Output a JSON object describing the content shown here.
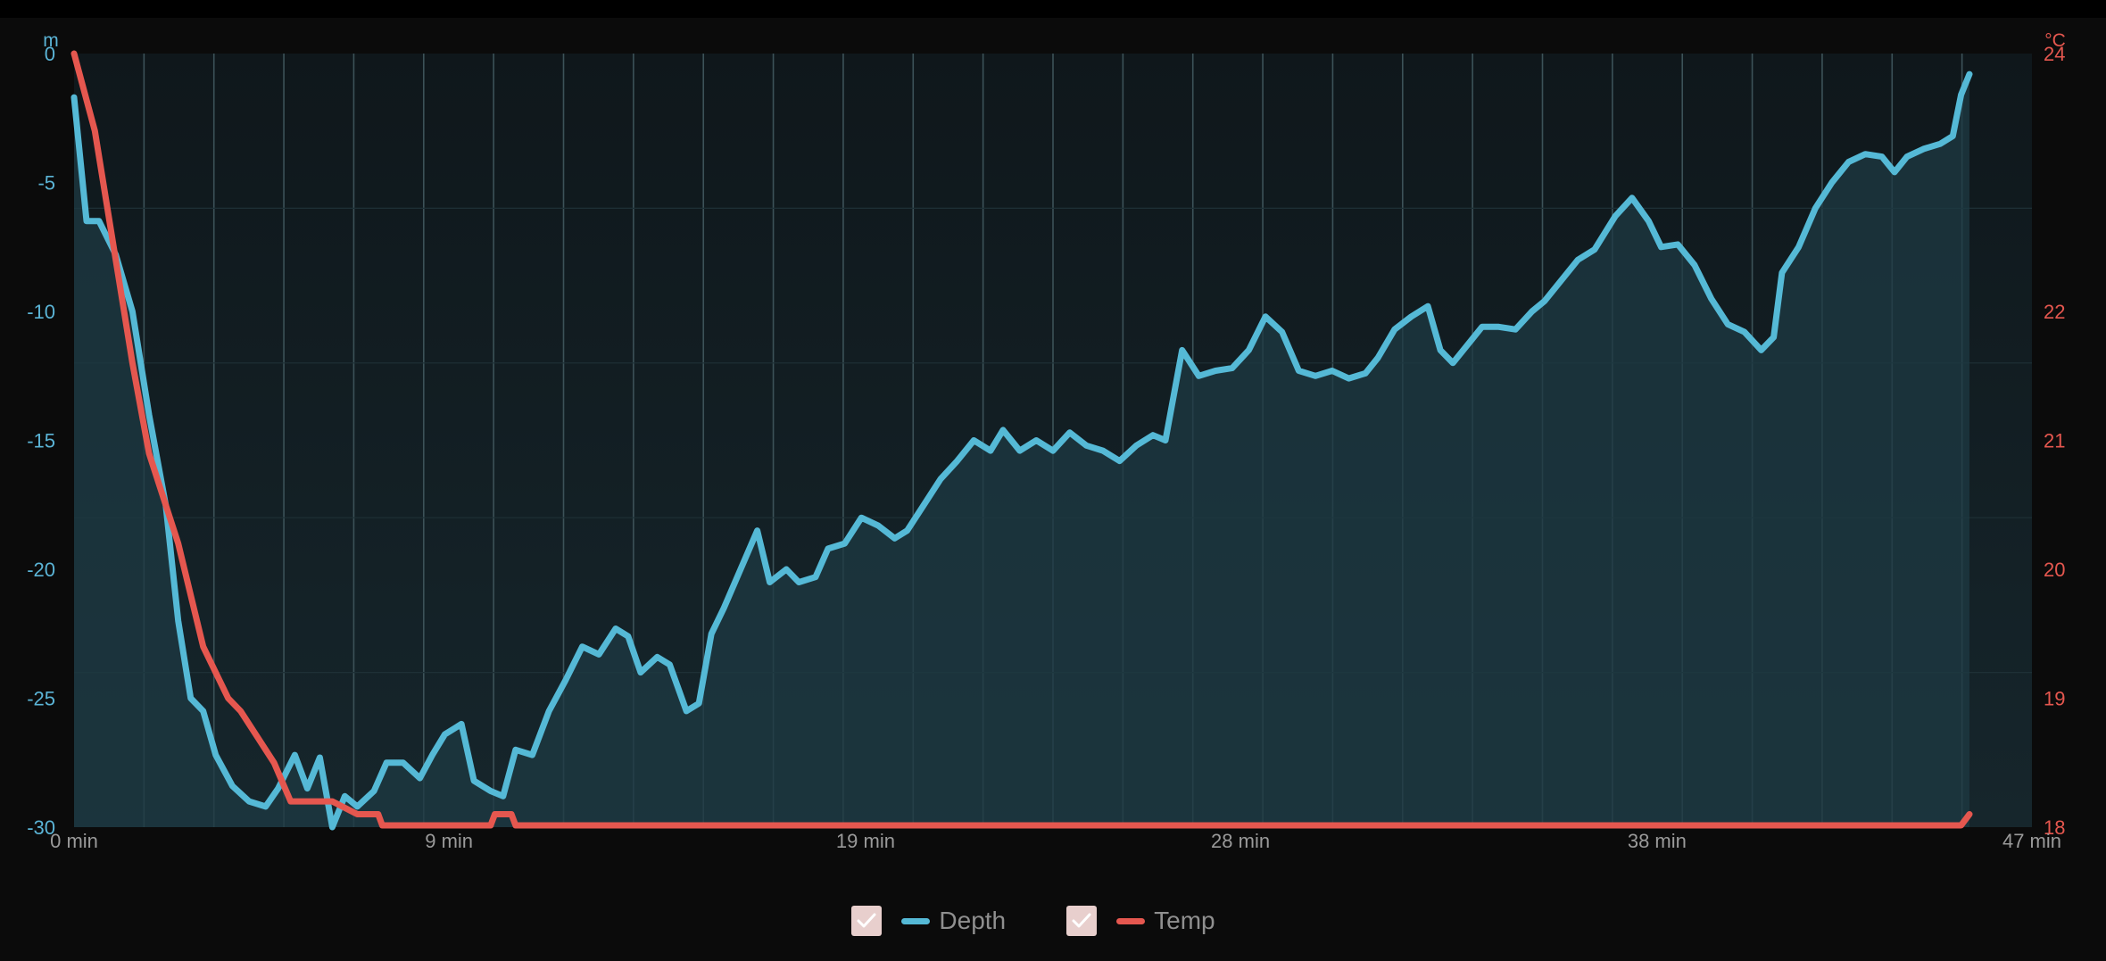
{
  "chart_data": {
    "type": "line",
    "x_unit_suffix": " min",
    "x_ticks": [
      0,
      9,
      19,
      28,
      38,
      47
    ],
    "xlim": [
      0,
      47
    ],
    "y_left": {
      "unit": "m",
      "ticks": [
        0,
        -5,
        -10,
        -15,
        -20,
        -25,
        -30
      ],
      "ylim": [
        -30,
        0
      ]
    },
    "y_right": {
      "unit": "°C",
      "ticks": [
        24,
        22,
        21,
        20,
        19,
        18
      ],
      "ylim": [
        18,
        24
      ]
    },
    "grid": true,
    "legend_position": "bottom-center",
    "series": [
      {
        "name": "Depth",
        "axis": "left",
        "color": "#55b9d6",
        "fill": true,
        "points": [
          [
            0,
            -1.7
          ],
          [
            0.3,
            -6.5
          ],
          [
            0.6,
            -6.5
          ],
          [
            1.0,
            -7.8
          ],
          [
            1.4,
            -10
          ],
          [
            1.8,
            -14
          ],
          [
            2.2,
            -17.5
          ],
          [
            2.5,
            -22
          ],
          [
            2.8,
            -25
          ],
          [
            3.1,
            -25.5
          ],
          [
            3.4,
            -27.2
          ],
          [
            3.8,
            -28.4
          ],
          [
            4.2,
            -29.0
          ],
          [
            4.6,
            -29.2
          ],
          [
            4.9,
            -28.5
          ],
          [
            5.3,
            -27.2
          ],
          [
            5.6,
            -28.5
          ],
          [
            5.9,
            -27.3
          ],
          [
            6.2,
            -30.0
          ],
          [
            6.5,
            -28.8
          ],
          [
            6.8,
            -29.2
          ],
          [
            7.2,
            -28.6
          ],
          [
            7.5,
            -27.5
          ],
          [
            7.9,
            -27.5
          ],
          [
            8.3,
            -28.1
          ],
          [
            8.6,
            -27.2
          ],
          [
            8.9,
            -26.4
          ],
          [
            9.3,
            -26.0
          ],
          [
            9.6,
            -28.2
          ],
          [
            10.0,
            -28.6
          ],
          [
            10.3,
            -28.8
          ],
          [
            10.6,
            -27.0
          ],
          [
            11.0,
            -27.2
          ],
          [
            11.4,
            -25.5
          ],
          [
            11.8,
            -24.3
          ],
          [
            12.2,
            -23.0
          ],
          [
            12.6,
            -23.3
          ],
          [
            13.0,
            -22.3
          ],
          [
            13.3,
            -22.6
          ],
          [
            13.6,
            -24.0
          ],
          [
            14.0,
            -23.4
          ],
          [
            14.3,
            -23.7
          ],
          [
            14.7,
            -25.5
          ],
          [
            15.0,
            -25.2
          ],
          [
            15.3,
            -22.5
          ],
          [
            15.6,
            -21.5
          ],
          [
            16.0,
            -20.0
          ],
          [
            16.4,
            -18.5
          ],
          [
            16.7,
            -20.5
          ],
          [
            17.1,
            -20.0
          ],
          [
            17.4,
            -20.5
          ],
          [
            17.8,
            -20.3
          ],
          [
            18.1,
            -19.2
          ],
          [
            18.5,
            -19.0
          ],
          [
            18.9,
            -18.0
          ],
          [
            19.3,
            -18.3
          ],
          [
            19.7,
            -18.8
          ],
          [
            20.0,
            -18.5
          ],
          [
            20.4,
            -17.5
          ],
          [
            20.8,
            -16.5
          ],
          [
            21.2,
            -15.8
          ],
          [
            21.6,
            -15.0
          ],
          [
            22.0,
            -15.4
          ],
          [
            22.3,
            -14.6
          ],
          [
            22.7,
            -15.4
          ],
          [
            23.1,
            -15.0
          ],
          [
            23.5,
            -15.4
          ],
          [
            23.9,
            -14.7
          ],
          [
            24.3,
            -15.2
          ],
          [
            24.7,
            -15.4
          ],
          [
            25.1,
            -15.8
          ],
          [
            25.5,
            -15.2
          ],
          [
            25.9,
            -14.8
          ],
          [
            26.2,
            -15.0
          ],
          [
            26.6,
            -11.5
          ],
          [
            27.0,
            -12.5
          ],
          [
            27.4,
            -12.3
          ],
          [
            27.8,
            -12.2
          ],
          [
            28.2,
            -11.5
          ],
          [
            28.6,
            -10.2
          ],
          [
            29.0,
            -10.8
          ],
          [
            29.4,
            -12.3
          ],
          [
            29.8,
            -12.5
          ],
          [
            30.2,
            -12.3
          ],
          [
            30.6,
            -12.6
          ],
          [
            31.0,
            -12.4
          ],
          [
            31.3,
            -11.8
          ],
          [
            31.7,
            -10.7
          ],
          [
            32.1,
            -10.2
          ],
          [
            32.5,
            -9.8
          ],
          [
            32.8,
            -11.5
          ],
          [
            33.1,
            -12.0
          ],
          [
            33.5,
            -11.2
          ],
          [
            33.8,
            -10.6
          ],
          [
            34.2,
            -10.6
          ],
          [
            34.6,
            -10.7
          ],
          [
            35.0,
            -10.0
          ],
          [
            35.3,
            -9.6
          ],
          [
            35.7,
            -8.8
          ],
          [
            36.1,
            -8.0
          ],
          [
            36.5,
            -7.6
          ],
          [
            37.0,
            -6.3
          ],
          [
            37.4,
            -5.6
          ],
          [
            37.8,
            -6.5
          ],
          [
            38.1,
            -7.5
          ],
          [
            38.5,
            -7.4
          ],
          [
            38.9,
            -8.2
          ],
          [
            39.3,
            -9.5
          ],
          [
            39.7,
            -10.5
          ],
          [
            40.1,
            -10.8
          ],
          [
            40.5,
            -11.5
          ],
          [
            40.8,
            -11.0
          ],
          [
            41.0,
            -8.5
          ],
          [
            41.4,
            -7.5
          ],
          [
            41.8,
            -6.0
          ],
          [
            42.2,
            -5.0
          ],
          [
            42.6,
            -4.2
          ],
          [
            43.0,
            -3.9
          ],
          [
            43.4,
            -4.0
          ],
          [
            43.7,
            -4.6
          ],
          [
            44.0,
            -4.0
          ],
          [
            44.4,
            -3.7
          ],
          [
            44.8,
            -3.5
          ],
          [
            45.1,
            -3.2
          ],
          [
            45.3,
            -1.6
          ],
          [
            45.5,
            -0.8
          ]
        ]
      },
      {
        "name": "Temp",
        "axis": "right",
        "color": "#e5574f",
        "fill": false,
        "points": [
          [
            0,
            24.0
          ],
          [
            0.5,
            23.4
          ],
          [
            1.0,
            22.4
          ],
          [
            1.4,
            21.6
          ],
          [
            1.8,
            20.9
          ],
          [
            2.2,
            20.5
          ],
          [
            2.5,
            20.2
          ],
          [
            2.8,
            19.8
          ],
          [
            3.1,
            19.4
          ],
          [
            3.4,
            19.2
          ],
          [
            3.7,
            19.0
          ],
          [
            4.0,
            18.9
          ],
          [
            4.4,
            18.7
          ],
          [
            4.8,
            18.5
          ],
          [
            5.2,
            18.2
          ],
          [
            5.6,
            18.2
          ],
          [
            6.2,
            18.2
          ],
          [
            6.8,
            18.1
          ],
          [
            7.3,
            18.1
          ],
          [
            7.4,
            18.0
          ],
          [
            10.0,
            18.0
          ],
          [
            10.1,
            18.1
          ],
          [
            10.5,
            18.1
          ],
          [
            10.6,
            18.0
          ],
          [
            13.0,
            18.0
          ],
          [
            13.1,
            17.9
          ],
          [
            13.5,
            17.9
          ],
          [
            13.6,
            17.8
          ],
          [
            14.2,
            17.8
          ],
          [
            14.3,
            17.7
          ],
          [
            15.3,
            17.7
          ],
          [
            15.4,
            17.6
          ],
          [
            16.5,
            17.6
          ],
          [
            16.6,
            17.7
          ],
          [
            17.7,
            17.7
          ],
          [
            17.8,
            17.6
          ],
          [
            18.5,
            17.6
          ],
          [
            18.6,
            17.7
          ],
          [
            19.4,
            17.7
          ],
          [
            19.5,
            17.8
          ],
          [
            20.4,
            17.8
          ],
          [
            20.5,
            17.9
          ],
          [
            22.4,
            17.9
          ],
          [
            22.5,
            17.8
          ],
          [
            25.2,
            17.8
          ],
          [
            25.3,
            17.7
          ],
          [
            27.8,
            17.7
          ],
          [
            27.9,
            17.8
          ],
          [
            28.2,
            17.8
          ],
          [
            28.3,
            17.7
          ],
          [
            29.8,
            17.7
          ],
          [
            29.9,
            17.8
          ],
          [
            30.3,
            17.8
          ],
          [
            30.4,
            17.7
          ],
          [
            31.1,
            17.7
          ],
          [
            31.2,
            17.8
          ],
          [
            33.0,
            17.8
          ],
          [
            33.1,
            17.9
          ],
          [
            35.0,
            17.9
          ],
          [
            35.1,
            17.8
          ],
          [
            37.6,
            17.8
          ],
          [
            37.7,
            17.9
          ],
          [
            39.7,
            17.9
          ],
          [
            39.8,
            17.8
          ],
          [
            41.2,
            17.8
          ],
          [
            41.3,
            17.7
          ],
          [
            41.8,
            17.7
          ],
          [
            41.9,
            17.6
          ],
          [
            43.6,
            17.6
          ],
          [
            43.7,
            17.7
          ],
          [
            44.1,
            17.7
          ],
          [
            44.2,
            17.8
          ],
          [
            44.7,
            17.8
          ],
          [
            44.8,
            17.9
          ],
          [
            45.3,
            17.9
          ],
          [
            45.5,
            18.1
          ]
        ]
      }
    ]
  },
  "legend": {
    "items": [
      {
        "label": "Depth",
        "checked": true
      },
      {
        "label": "Temp",
        "checked": true
      }
    ]
  }
}
